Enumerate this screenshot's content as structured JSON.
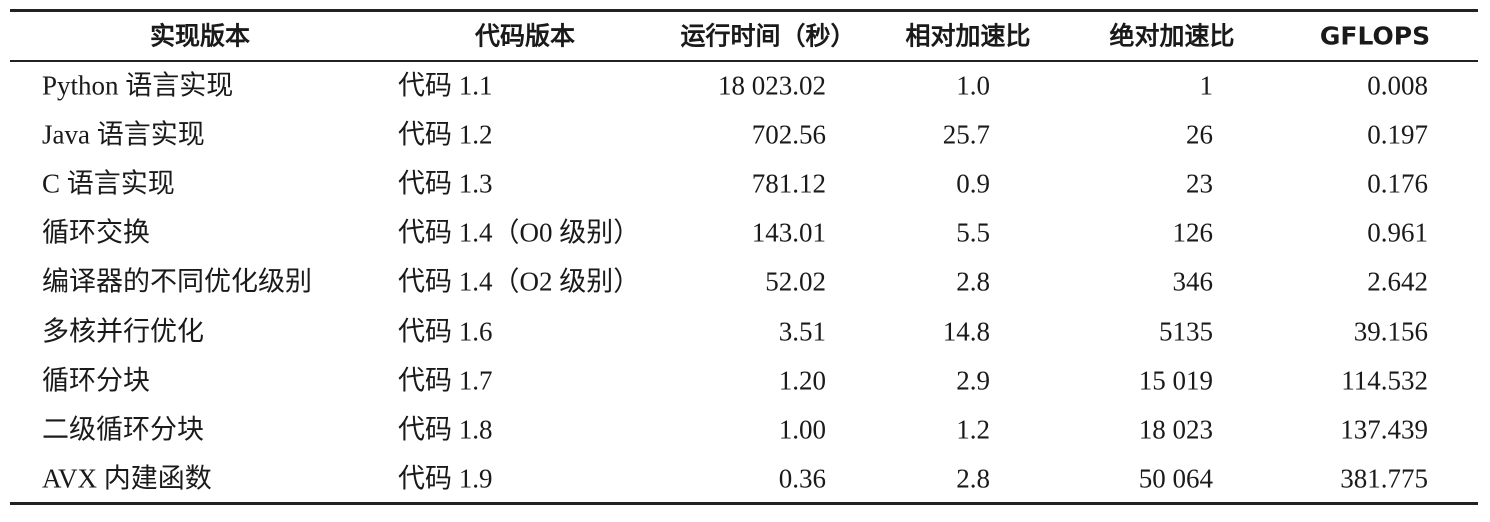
{
  "table": {
    "header": [
      "实现版本",
      "代码版本",
      "运行时间（秒）",
      "相对加速比",
      "绝对加速比",
      "GFLOPS"
    ],
    "rows": [
      [
        "Python 语言实现",
        "代码 1.1",
        "18 023.02",
        "1.0",
        "1",
        "0.008"
      ],
      [
        "Java 语言实现",
        "代码 1.2",
        "702.56",
        "25.7",
        "26",
        "0.197"
      ],
      [
        "C 语言实现",
        "代码 1.3",
        "781.12",
        "0.9",
        "23",
        "0.176"
      ],
      [
        "循环交换",
        "代码 1.4（O0 级别）",
        "143.01",
        "5.5",
        "126",
        "0.961"
      ],
      [
        "编译器的不同优化级别",
        "代码 1.4（O2 级别）",
        "52.02",
        "2.8",
        "346",
        "2.642"
      ],
      [
        "多核并行优化",
        "代码 1.6",
        "3.51",
        "14.8",
        "5135",
        "39.156"
      ],
      [
        "循环分块",
        "代码 1.7",
        "1.20",
        "2.9",
        "15 019",
        "114.532"
      ],
      [
        "二级循环分块",
        "代码 1.8",
        "1.00",
        "1.2",
        "18 023",
        "137.439"
      ],
      [
        "AVX 内建函数",
        "代码 1.9",
        "0.36",
        "2.8",
        "50 064",
        "381.775"
      ]
    ]
  }
}
